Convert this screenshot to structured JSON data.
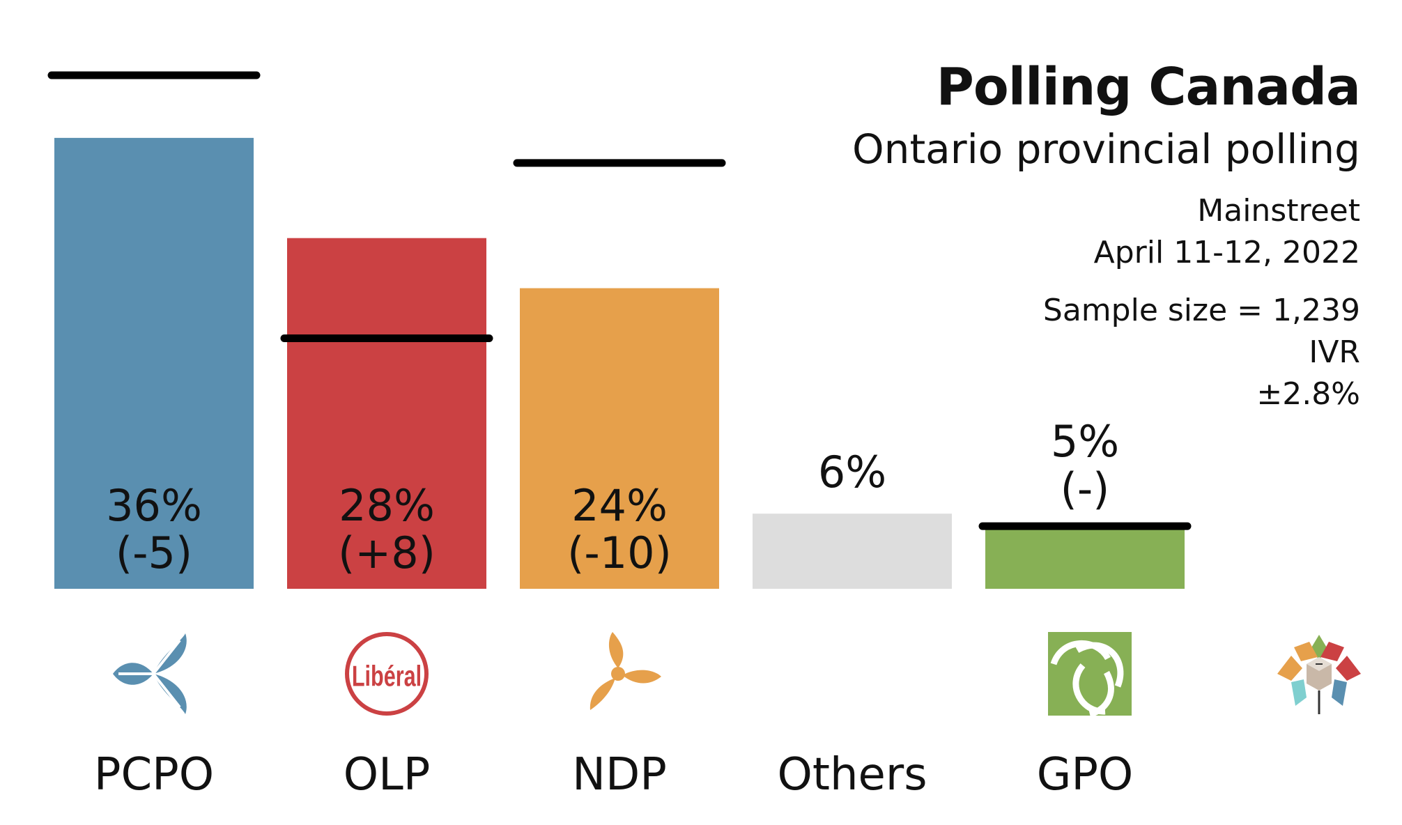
{
  "header": {
    "title": "Polling Canada",
    "subtitle": "Ontario provincial polling",
    "pollster": "Mainstreet",
    "dates": "April 11-12, 2022",
    "sample": "Sample size = 1,239",
    "method": "IVR",
    "moe": "±2.8%"
  },
  "chart_data": {
    "type": "bar",
    "title": "Polling Canada",
    "subtitle": "Ontario provincial polling",
    "categories": [
      "PCPO",
      "OLP",
      "NDP",
      "Others",
      "GPO"
    ],
    "values": [
      36,
      28,
      24,
      6,
      5
    ],
    "value_labels": [
      "36%",
      "28%",
      "24%",
      "6%",
      "5%"
    ],
    "change_labels": [
      "(-5)",
      "(+8)",
      "(-10)",
      "",
      "(-)"
    ],
    "previous_values": [
      41,
      20,
      34,
      null,
      5
    ],
    "colors": [
      "#5a8fb0",
      "#cb4143",
      "#e6a04b",
      "#dddddd",
      "#87b055"
    ],
    "party_icons": [
      "pcpo-trillium-icon",
      "olp-liberal-logo-icon",
      "ndp-trillium-icon",
      "",
      "gpo-logo-icon"
    ],
    "brand_icon": "polling-canada-logo-icon",
    "xlabel": "",
    "ylabel": "",
    "ylim": [
      0,
      41
    ],
    "grid": false,
    "legend": "none"
  }
}
